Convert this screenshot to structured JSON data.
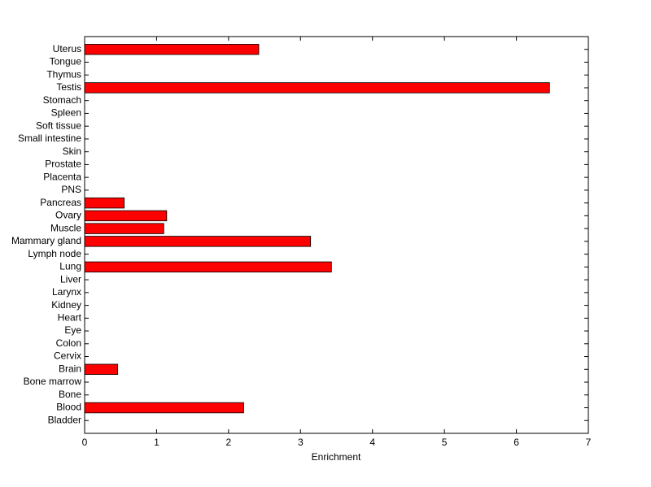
{
  "chart_data": {
    "type": "barh",
    "xlabel": "Enrichment",
    "categories": [
      "Bladder",
      "Blood",
      "Bone",
      "Bone marrow",
      "Brain",
      "Cervix",
      "Colon",
      "Eye",
      "Heart",
      "Kidney",
      "Larynx",
      "Liver",
      "Lung",
      "Lymph node",
      "Mammary gland",
      "Muscle",
      "Ovary",
      "Pancreas",
      "PNS",
      "Placenta",
      "Prostate",
      "Skin",
      "Small intestine",
      "Soft tissue",
      "Spleen",
      "Stomach",
      "Testis",
      "Thymus",
      "Tongue",
      "Uterus"
    ],
    "values": [
      0,
      2.21,
      0,
      0,
      0.46,
      0,
      0,
      0,
      0,
      0,
      0,
      0,
      3.43,
      0,
      3.14,
      1.1,
      1.14,
      0.55,
      0,
      0,
      0,
      0,
      0,
      0,
      0,
      0,
      6.46,
      0,
      0,
      2.42
    ],
    "color": "#ff0000",
    "xlim": [
      0,
      7
    ],
    "xticks": [
      0,
      1,
      2,
      3,
      4,
      5,
      6,
      7
    ],
    "grid": false
  }
}
